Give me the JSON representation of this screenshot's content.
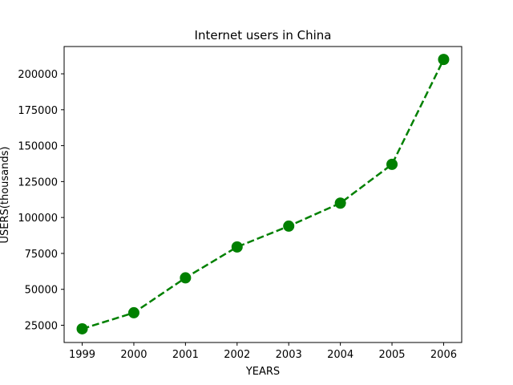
{
  "chart_data": {
    "type": "line",
    "title": "Internet users in China",
    "xlabel": "YEARS",
    "ylabel": "USERS(thousands)",
    "x": [
      1999,
      2000,
      2001,
      2002,
      2003,
      2004,
      2005,
      2006
    ],
    "series": [
      {
        "values": [
          22500,
          33700,
          58000,
          79500,
          94000,
          110000,
          137000,
          210000
        ],
        "color": "#008000",
        "line_style": "dashed",
        "marker": "circle"
      }
    ],
    "xlim": [
      1998.65,
      2006.35
    ],
    "ylim": [
      13000,
      219000
    ],
    "x_ticks": [
      "1999",
      "2000",
      "2001",
      "2002",
      "2003",
      "2004",
      "2005",
      "2006"
    ],
    "y_ticks": [
      "25000",
      "50000",
      "75000",
      "100000",
      "125000",
      "150000",
      "175000",
      "200000"
    ],
    "grid": false,
    "legend": false
  }
}
